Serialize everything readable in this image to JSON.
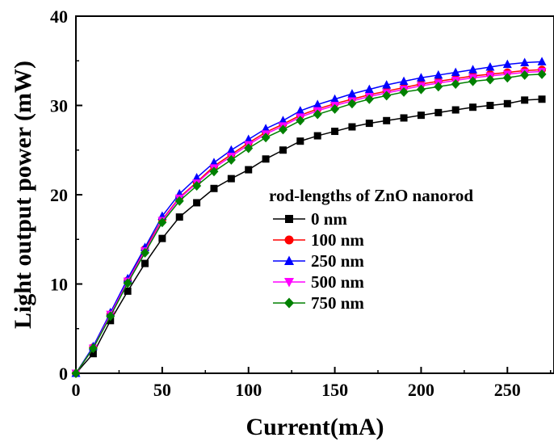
{
  "chart_data": {
    "type": "line",
    "xlabel": "Current(mA)",
    "ylabel": "Light output power (mW)",
    "xlim": [
      0,
      277
    ],
    "ylim": [
      0,
      40
    ],
    "x_ticks": [
      0,
      50,
      100,
      150,
      200,
      250
    ],
    "y_ticks": [
      0,
      10,
      20,
      30,
      40
    ],
    "grid": false,
    "legend_title": "rod-lengths of ZnO nanorod",
    "legend_position": "center-right",
    "x": [
      0,
      10,
      20,
      30,
      40,
      50,
      60,
      70,
      80,
      90,
      100,
      110,
      120,
      130,
      140,
      150,
      160,
      170,
      180,
      190,
      200,
      210,
      220,
      230,
      240,
      250,
      260,
      270
    ],
    "series": [
      {
        "name": "0 nm",
        "color": "#000000",
        "marker": "square",
        "values": [
          0,
          2.2,
          5.9,
          9.2,
          12.3,
          15.1,
          17.5,
          19.1,
          20.7,
          21.8,
          22.8,
          24.0,
          25.0,
          26.0,
          26.6,
          27.1,
          27.6,
          28.0,
          28.3,
          28.6,
          28.9,
          29.2,
          29.5,
          29.8,
          30.0,
          30.2,
          30.6,
          30.7
        ]
      },
      {
        "name": "100 nm",
        "color": "#ff0000",
        "marker": "circle",
        "values": [
          0,
          2.9,
          6.6,
          10.4,
          13.9,
          17.2,
          19.7,
          21.4,
          23.2,
          24.5,
          25.8,
          27.0,
          27.9,
          28.9,
          29.6,
          30.2,
          30.7,
          31.2,
          31.6,
          32.0,
          32.4,
          32.7,
          33.0,
          33.3,
          33.5,
          33.7,
          33.9,
          34.0
        ]
      },
      {
        "name": "250 nm",
        "color": "#0000ff",
        "marker": "triangle-up",
        "values": [
          0,
          3.0,
          6.8,
          10.6,
          14.1,
          17.6,
          20.1,
          21.9,
          23.6,
          25.0,
          26.2,
          27.4,
          28.3,
          29.4,
          30.1,
          30.7,
          31.3,
          31.8,
          32.3,
          32.7,
          33.1,
          33.4,
          33.7,
          34.0,
          34.3,
          34.6,
          34.8,
          34.9
        ]
      },
      {
        "name": "500 nm",
        "color": "#ff00ff",
        "marker": "triangle-down",
        "values": [
          0,
          2.8,
          6.6,
          10.3,
          13.7,
          17.1,
          19.6,
          21.3,
          23.0,
          24.3,
          25.6,
          26.8,
          27.7,
          28.7,
          29.4,
          30.0,
          30.5,
          31.0,
          31.4,
          31.8,
          32.2,
          32.5,
          32.8,
          33.1,
          33.3,
          33.5,
          33.7,
          33.8
        ]
      },
      {
        "name": "750 nm",
        "color": "#008000",
        "marker": "diamond",
        "values": [
          0,
          2.8,
          6.4,
          10.1,
          13.5,
          16.9,
          19.3,
          21.0,
          22.6,
          23.9,
          25.2,
          26.4,
          27.3,
          28.3,
          29.0,
          29.6,
          30.2,
          30.7,
          31.1,
          31.5,
          31.8,
          32.1,
          32.4,
          32.7,
          32.9,
          33.1,
          33.4,
          33.5
        ]
      }
    ]
  }
}
